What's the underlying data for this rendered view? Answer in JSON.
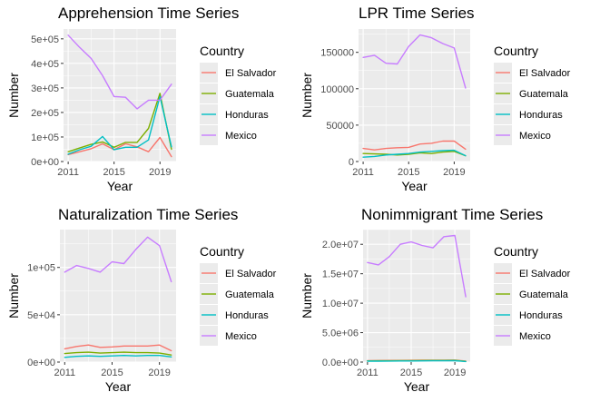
{
  "legend": {
    "title": "Country",
    "items": [
      {
        "name": "El Salvador",
        "color": "#F8766D"
      },
      {
        "name": "Guatemala",
        "color": "#7CAE00"
      },
      {
        "name": "Honduras",
        "color": "#00BFC4"
      },
      {
        "name": "Mexico",
        "color": "#C77CFF"
      }
    ]
  },
  "chart_data": [
    {
      "type": "line",
      "title": "Apprehension Time Series",
      "xlabel": "Year",
      "ylabel": "Number",
      "xlim": [
        2011,
        2020
      ],
      "ylim": [
        0,
        540000
      ],
      "x_ticks": [
        2011,
        2015,
        2019
      ],
      "x_tick_labels": [
        "2011",
        "2015",
        "2019"
      ],
      "y_ticks": [
        0,
        100000,
        200000,
        300000,
        400000,
        500000
      ],
      "y_tick_labels": [
        "0e+00",
        "1e+05",
        "2e+05",
        "3e+05",
        "4e+05",
        "5e+05"
      ],
      "x": [
        2011,
        2012,
        2013,
        2014,
        2015,
        2016,
        2017,
        2018,
        2019,
        2020
      ],
      "series": [
        {
          "name": "El Salvador",
          "values": [
            28000,
            40000,
            52000,
            72000,
            48000,
            72000,
            60000,
            40000,
            98000,
            20000
          ]
        },
        {
          "name": "Guatemala",
          "values": [
            40000,
            55000,
            70000,
            80000,
            58000,
            78000,
            78000,
            135000,
            278000,
            50000
          ]
        },
        {
          "name": "Honduras",
          "values": [
            30000,
            48000,
            62000,
            102000,
            48000,
            58000,
            58000,
            88000,
            265000,
            60000
          ]
        },
        {
          "name": "Mexico",
          "values": [
            515000,
            465000,
            420000,
            350000,
            265000,
            262000,
            215000,
            250000,
            250000,
            315000
          ]
        }
      ]
    },
    {
      "type": "line",
      "title": "LPR Time Series",
      "xlabel": "Year",
      "ylabel": "Number",
      "xlim": [
        2011,
        2020
      ],
      "ylim": [
        0,
        182000
      ],
      "x_ticks": [
        2011,
        2015,
        2019
      ],
      "x_tick_labels": [
        "2011",
        "2015",
        "2019"
      ],
      "y_ticks": [
        0,
        50000,
        100000,
        150000
      ],
      "y_tick_labels": [
        "0",
        "50000",
        "100000",
        "150000"
      ],
      "x": [
        2011,
        2012,
        2013,
        2014,
        2015,
        2016,
        2017,
        2018,
        2019,
        2020
      ],
      "series": [
        {
          "name": "El Salvador",
          "values": [
            18000,
            16000,
            18000,
            19000,
            19500,
            24000,
            25000,
            28000,
            28000,
            17000
          ]
        },
        {
          "name": "Guatemala",
          "values": [
            11000,
            10500,
            10000,
            9000,
            10000,
            12000,
            11000,
            13000,
            14000,
            8000
          ]
        },
        {
          "name": "Honduras",
          "values": [
            6000,
            7000,
            9000,
            10000,
            11000,
            13000,
            14000,
            15000,
            15500,
            8000
          ]
        },
        {
          "name": "Mexico",
          "values": [
            143000,
            146000,
            135000,
            134000,
            158000,
            174000,
            170000,
            162000,
            156000,
            101000
          ]
        }
      ]
    },
    {
      "type": "line",
      "title": "Naturalization Time Series",
      "xlabel": "Year",
      "ylabel": "Number",
      "xlim": [
        2011,
        2020
      ],
      "ylim": [
        0,
        140000
      ],
      "x_ticks": [
        2011,
        2015,
        2019
      ],
      "x_tick_labels": [
        "2011",
        "2015",
        "2019"
      ],
      "y_ticks": [
        0,
        50000,
        100000
      ],
      "y_tick_labels": [
        "0e+00",
        "5e+04",
        "1e+05"
      ],
      "x": [
        2011,
        2012,
        2013,
        2014,
        2015,
        2016,
        2017,
        2018,
        2019,
        2020
      ],
      "series": [
        {
          "name": "El Salvador",
          "values": [
            14000,
            16500,
            18000,
            15500,
            16000,
            17000,
            17000,
            17000,
            18000,
            12000
          ]
        },
        {
          "name": "Guatemala",
          "values": [
            9000,
            10000,
            10500,
            9500,
            10000,
            10500,
            10000,
            10000,
            9500,
            7500
          ]
        },
        {
          "name": "Honduras",
          "values": [
            5000,
            6000,
            6500,
            6000,
            6500,
            7000,
            6500,
            7000,
            7000,
            5500
          ]
        },
        {
          "name": "Mexico",
          "values": [
            95000,
            102000,
            99000,
            95000,
            106000,
            104000,
            119000,
            132000,
            123000,
            85000
          ]
        }
      ]
    },
    {
      "type": "line",
      "title": "Nonimmigrant Time Series",
      "xlabel": "Year",
      "ylabel": "Number",
      "xlim": [
        2011,
        2020
      ],
      "ylim": [
        0,
        22500000
      ],
      "x_ticks": [
        2011,
        2015,
        2019
      ],
      "x_tick_labels": [
        "2011",
        "2015",
        "2019"
      ],
      "y_ticks": [
        0,
        5000000,
        10000000,
        15000000,
        20000000
      ],
      "y_tick_labels": [
        "0.0e+00",
        "5.0e+06",
        "1.0e+07",
        "1.5e+07",
        "2.0e+07"
      ],
      "x": [
        2011,
        2012,
        2013,
        2014,
        2015,
        2016,
        2017,
        2018,
        2019,
        2020
      ],
      "series": [
        {
          "name": "El Salvador",
          "values": [
            250000,
            260000,
            270000,
            280000,
            300000,
            310000,
            320000,
            330000,
            340000,
            150000
          ]
        },
        {
          "name": "Guatemala",
          "values": [
            200000,
            210000,
            220000,
            230000,
            250000,
            260000,
            270000,
            280000,
            290000,
            120000
          ]
        },
        {
          "name": "Honduras",
          "values": [
            150000,
            160000,
            170000,
            180000,
            190000,
            200000,
            210000,
            220000,
            230000,
            100000
          ]
        },
        {
          "name": "Mexico",
          "values": [
            16900000,
            16500000,
            17900000,
            20000000,
            20400000,
            19800000,
            19400000,
            21300000,
            21500000,
            11100000
          ]
        }
      ]
    }
  ]
}
